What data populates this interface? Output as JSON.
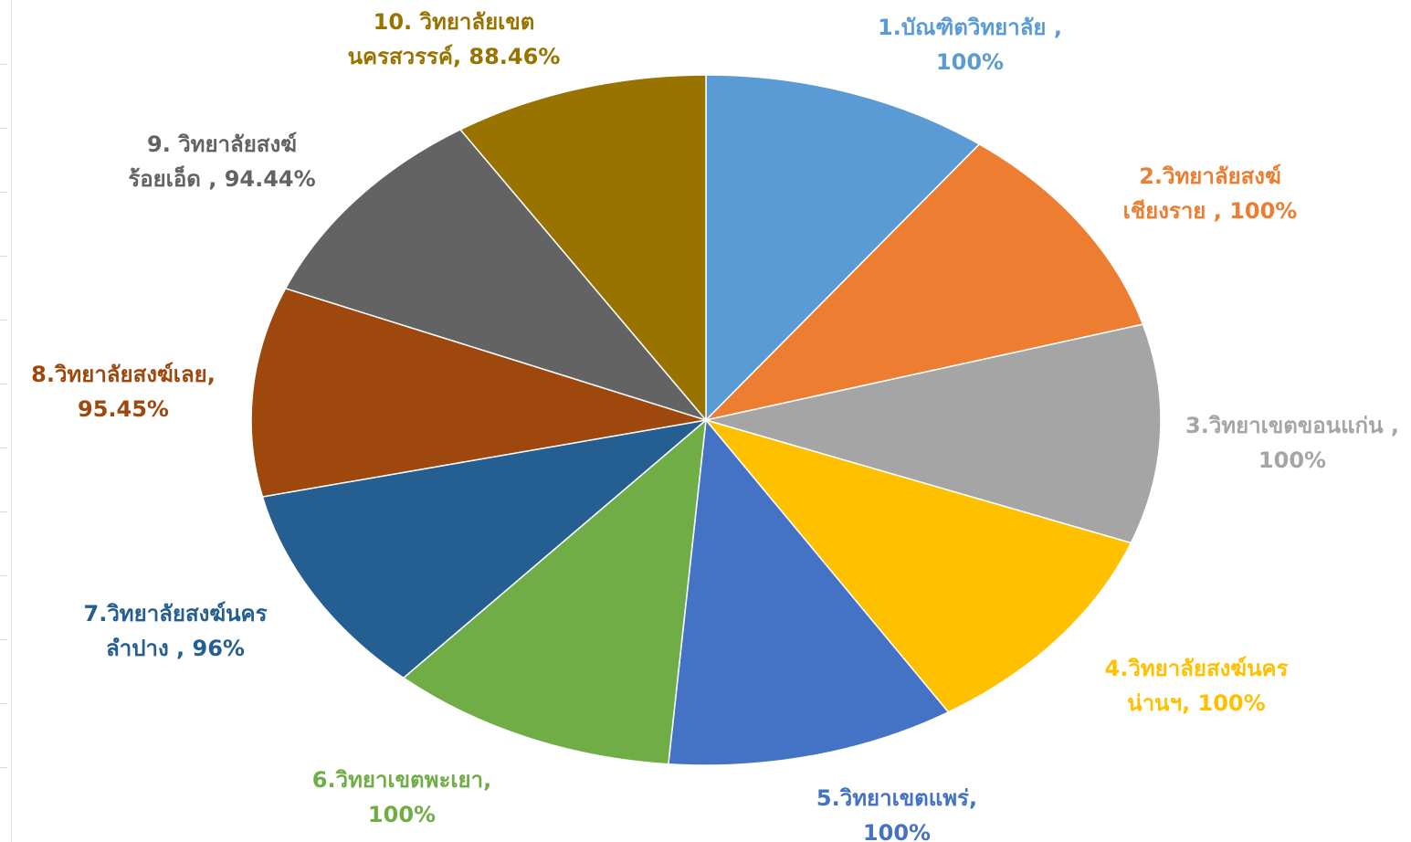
{
  "chart_data": {
    "type": "pie",
    "title": "",
    "legend": "none",
    "categories": [
      "1.บัณฑิตวิทยาลัย",
      "2.วิทยาลัยสงฆ์เชียงราย",
      "3.วิทยาเขตขอนแก่น",
      "4.วิทยาลัยสงฆ์นครน่านฯ",
      "5.วิทยาเขตแพร่",
      "6.วิทยาเขตพะเยา",
      "7.วิทยาลัยสงฆ์นครลำปาง",
      "8.วิทยาลัยสงฆ์เลย",
      "9. วิทยาลัยสงฆ์ร้อยเอ็ด",
      "10. วิทยาลัยเขตนครสวรรค์"
    ],
    "values": [
      100,
      100,
      100,
      100,
      100,
      100,
      96,
      95.45,
      94.44,
      88.46
    ],
    "colors": [
      "#5b9bd5",
      "#ed7d31",
      "#a5a5a5",
      "#ffc000",
      "#4472c4",
      "#70ad47",
      "#255e91",
      "#9e480e",
      "#636363",
      "#997300"
    ],
    "labels": [
      {
        "lines": [
          "1.บัณฑิตวิทยาลัย     ,",
          "100%"
        ]
      },
      {
        "lines": [
          "2.วิทยาลัยสงฆ์",
          "เชียงราย , 100%"
        ]
      },
      {
        "lines": [
          "3.วิทยาเขตขอนแก่น ,",
          "100%"
        ]
      },
      {
        "lines": [
          "4.วิทยาลัยสงฆ์นคร",
          "น่านฯ, 100%"
        ]
      },
      {
        "lines": [
          "5.วิทยาเขตแพร่,",
          "100%"
        ]
      },
      {
        "lines": [
          "6.วิทยาเขตพะเยา,",
          "100%"
        ]
      },
      {
        "lines": [
          "7.วิทยาลัยสงฆ์นคร",
          "ลำปาง   , 96%"
        ]
      },
      {
        "lines": [
          "8.วิทยาลัยสงฆ์เลย,",
          "95.45%"
        ]
      },
      {
        "lines": [
          "9. วิทยาลัยสงฆ์",
          "ร้อยเอ็ด , 94.44%"
        ]
      },
      {
        "lines": [
          "10. วิทยาลัยเขต",
          "นครสวรรค์, 88.46%"
        ]
      }
    ]
  }
}
